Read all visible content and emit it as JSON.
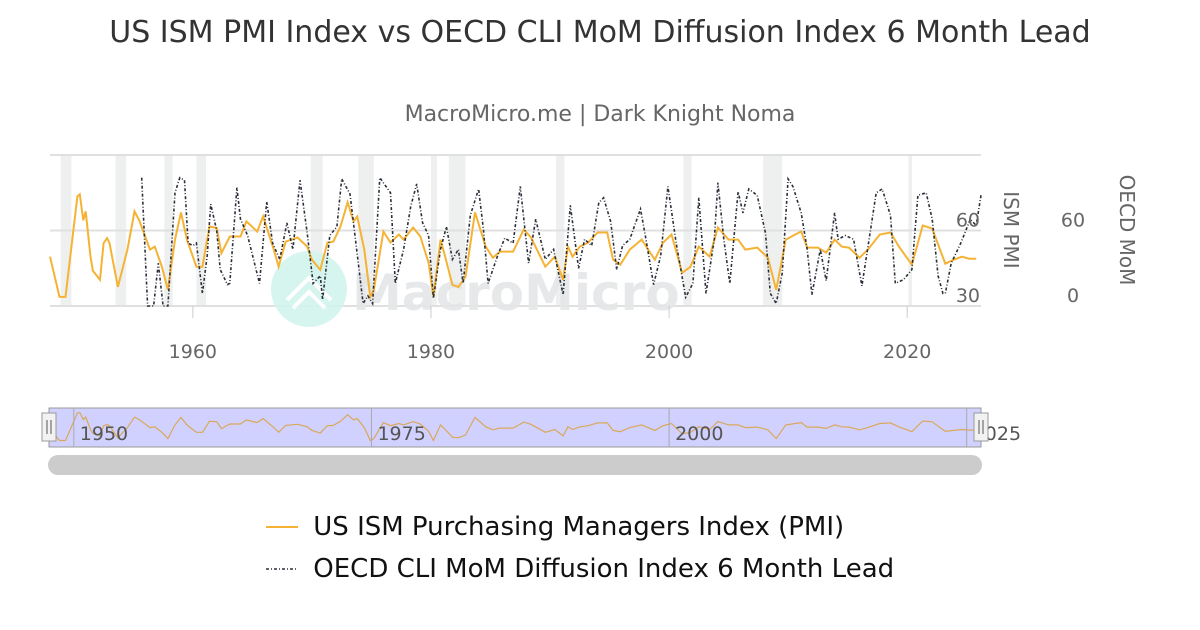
{
  "title": "US ISM PMI Index vs OECD CLI MoM Diffusion Index 6 Month Lead",
  "subtitle": "MacroMicro.me | Dark Knight Noma",
  "watermark": "MacroMicro",
  "chart_data": {
    "type": "line",
    "title": "US ISM PMI Index vs OECD CLI MoM Diffusion Index 6 Month Lead",
    "subtitle": "MacroMicro.me | Dark Knight Noma",
    "xlim": [
      1948,
      2026.2
    ],
    "x_ticks": [
      "1960",
      "1980",
      "2000",
      "2020"
    ],
    "y_axes": [
      {
        "title": "ISM PMI",
        "range": [
          30,
          90
        ],
        "ticks": [
          "30",
          "60"
        ]
      },
      {
        "title": "OECD MoM",
        "range": [
          0,
          120
        ],
        "ticks": [
          "0",
          "60"
        ]
      }
    ],
    "grid": true,
    "legend": "bottom",
    "recessions": [
      [
        1948.9,
        1949.8
      ],
      [
        1953.5,
        1954.4
      ],
      [
        1957.6,
        1958.3
      ],
      [
        1960.3,
        1961.1
      ],
      [
        1969.9,
        1970.9
      ],
      [
        1973.9,
        1975.2
      ],
      [
        1980.0,
        1980.5
      ],
      [
        1981.5,
        1982.9
      ],
      [
        1990.5,
        1991.2
      ],
      [
        2001.2,
        2001.9
      ],
      [
        2007.9,
        2009.5
      ],
      [
        2020.1,
        2020.4
      ]
    ],
    "navigator": {
      "ticks": [
        "1950",
        "1975",
        "2000",
        "2025"
      ]
    },
    "series": [
      {
        "name": "US ISM Purchasing Managers Index (PMI)",
        "color": "#f5b335",
        "axis": 0,
        "style": "solid",
        "points": [
          [
            1948,
            49.6
          ],
          [
            1948.8,
            33.6
          ],
          [
            1949.3,
            33.6
          ],
          [
            1950.3,
            73.6
          ],
          [
            1950.5,
            74.4
          ],
          [
            1950.8,
            64
          ],
          [
            1951,
            67.6
          ],
          [
            1951.4,
            49.6
          ],
          [
            1951.6,
            44
          ],
          [
            1952.2,
            40.4
          ],
          [
            1952.5,
            55
          ],
          [
            1952.8,
            57
          ],
          [
            1953,
            55
          ],
          [
            1953.7,
            37.6
          ],
          [
            1954.5,
            52.4
          ],
          [
            1955.1,
            67.6
          ],
          [
            1955.5,
            64
          ],
          [
            1956.4,
            52.4
          ],
          [
            1956.8,
            53.6
          ],
          [
            1957.4,
            45.6
          ],
          [
            1957.9,
            36.4
          ],
          [
            1958.5,
            56.4
          ],
          [
            1959,
            67.2
          ],
          [
            1959.5,
            56.4
          ],
          [
            1960.3,
            45.6
          ],
          [
            1960.8,
            45.6
          ],
          [
            1961.4,
            61.6
          ],
          [
            1962,
            61
          ],
          [
            1962.4,
            51
          ],
          [
            1963.1,
            57.6
          ],
          [
            1964,
            57.6
          ],
          [
            1964.5,
            63.6
          ],
          [
            1965.4,
            59.6
          ],
          [
            1965.9,
            65.6
          ],
          [
            1966.8,
            52.4
          ],
          [
            1967.2,
            45.6
          ],
          [
            1967.8,
            55.6
          ],
          [
            1968.8,
            57.2
          ],
          [
            1969.6,
            53.6
          ],
          [
            1970,
            48.4
          ],
          [
            1970.7,
            44.4
          ],
          [
            1971.3,
            55.2
          ],
          [
            1971.8,
            55.6
          ],
          [
            1972.4,
            61.6
          ],
          [
            1973,
            71.2
          ],
          [
            1973.5,
            63.6
          ],
          [
            1973.8,
            65.6
          ],
          [
            1974.4,
            52.4
          ],
          [
            1974.9,
            33.6
          ],
          [
            1975.2,
            36.4
          ],
          [
            1976,
            59.6
          ],
          [
            1976.6,
            55.2
          ],
          [
            1977.3,
            58.4
          ],
          [
            1977.7,
            56.4
          ],
          [
            1978.5,
            61.2
          ],
          [
            1979.1,
            57.6
          ],
          [
            1979.8,
            47.2
          ],
          [
            1980.2,
            33.6
          ],
          [
            1980.8,
            56.4
          ],
          [
            1981.1,
            51.2
          ],
          [
            1981.8,
            38.4
          ],
          [
            1982.3,
            37.6
          ],
          [
            1982.9,
            41.6
          ],
          [
            1983.7,
            67.2
          ],
          [
            1984.6,
            53.6
          ],
          [
            1985.2,
            49.2
          ],
          [
            1985.8,
            51.6
          ],
          [
            1986.9,
            51.6
          ],
          [
            1987.8,
            60.4
          ],
          [
            1988.4,
            57.2
          ],
          [
            1989.6,
            45.6
          ],
          [
            1990.4,
            49.6
          ],
          [
            1991.1,
            40.4
          ],
          [
            1991.5,
            53.6
          ],
          [
            1991.9,
            49.6
          ],
          [
            1992.5,
            53.6
          ],
          [
            1993.2,
            55.2
          ],
          [
            1994,
            59.2
          ],
          [
            1994.8,
            59.2
          ],
          [
            1995.3,
            48.4
          ],
          [
            1995.9,
            46.4
          ],
          [
            1996.7,
            52.4
          ],
          [
            1997.7,
            56.4
          ],
          [
            1998.8,
            48.4
          ],
          [
            1999.5,
            55.2
          ],
          [
            2000.2,
            58.4
          ],
          [
            2001.1,
            43.2
          ],
          [
            2001.8,
            45.6
          ],
          [
            2002.5,
            53.6
          ],
          [
            2003.4,
            49.6
          ],
          [
            2004.1,
            61.2
          ],
          [
            2005,
            56.4
          ],
          [
            2005.8,
            56.4
          ],
          [
            2006.4,
            52.4
          ],
          [
            2007.4,
            53.2
          ],
          [
            2008.3,
            49.2
          ],
          [
            2009,
            36.4
          ],
          [
            2009.8,
            56.4
          ],
          [
            2010.6,
            58.4
          ],
          [
            2011.1,
            59.6
          ],
          [
            2011.6,
            53.2
          ],
          [
            2012.5,
            53.2
          ],
          [
            2013.2,
            51.2
          ],
          [
            2013.9,
            56.4
          ],
          [
            2014.5,
            53.6
          ],
          [
            2015.1,
            53.2
          ],
          [
            2016,
            49.2
          ],
          [
            2016.7,
            52.4
          ],
          [
            2017.7,
            58.4
          ],
          [
            2018.6,
            59.2
          ],
          [
            2019.3,
            53.6
          ],
          [
            2020.4,
            46.4
          ],
          [
            2021.3,
            62
          ],
          [
            2022.1,
            60.8
          ],
          [
            2023.2,
            46.8
          ],
          [
            2023.9,
            48.4
          ],
          [
            2024.6,
            49.6
          ],
          [
            2025.2,
            48.8
          ],
          [
            2025.8,
            48.8
          ]
        ]
      },
      {
        "name": "OECD CLI MoM Diffusion Index 6 Month Lead",
        "color": "#2b2f3a",
        "axis": 1,
        "style": "dotted",
        "points": [
          [
            1955.7,
            102
          ],
          [
            1956.2,
            0
          ],
          [
            1956.7,
            0
          ],
          [
            1957.1,
            34
          ],
          [
            1957.5,
            0
          ],
          [
            1957.9,
            0
          ],
          [
            1958.5,
            90
          ],
          [
            1958.9,
            102
          ],
          [
            1959.3,
            100
          ],
          [
            1959.6,
            50
          ],
          [
            1960,
            48
          ],
          [
            1960.3,
            50
          ],
          [
            1960.8,
            10
          ],
          [
            1961.2,
            40
          ],
          [
            1961.5,
            81
          ],
          [
            1962,
            60
          ],
          [
            1962.3,
            29
          ],
          [
            1962.9,
            17
          ],
          [
            1963.1,
            18
          ],
          [
            1963.7,
            94
          ],
          [
            1964,
            69
          ],
          [
            1964.6,
            56
          ],
          [
            1965.6,
            18
          ],
          [
            1966.2,
            83
          ],
          [
            1966.7,
            50
          ],
          [
            1967.3,
            37
          ],
          [
            1967.9,
            66
          ],
          [
            1968.4,
            45
          ],
          [
            1969,
            100
          ],
          [
            1969.6,
            58
          ],
          [
            1970.1,
            18
          ],
          [
            1970.7,
            24
          ],
          [
            1970.9,
            5
          ],
          [
            1971.5,
            56
          ],
          [
            1972.1,
            63
          ],
          [
            1972.5,
            101
          ],
          [
            1973.2,
            89
          ],
          [
            1973.9,
            34
          ],
          [
            1974.3,
            2
          ],
          [
            1974.7,
            8
          ],
          [
            1975.1,
            2
          ],
          [
            1975.7,
            102
          ],
          [
            1976.6,
            90
          ],
          [
            1977,
            18
          ],
          [
            1977.7,
            45
          ],
          [
            1978.3,
            79
          ],
          [
            1978.8,
            97
          ],
          [
            1979.3,
            66
          ],
          [
            1979.8,
            56
          ],
          [
            1980.2,
            6
          ],
          [
            1980.8,
            45
          ],
          [
            1981.3,
            63
          ],
          [
            1981.8,
            37
          ],
          [
            1982.3,
            45
          ],
          [
            1982.7,
            18
          ],
          [
            1983.3,
            72
          ],
          [
            1984,
            93
          ],
          [
            1984.4,
            61
          ],
          [
            1984.8,
            18
          ],
          [
            1985.6,
            40
          ],
          [
            1986.2,
            54
          ],
          [
            1986.9,
            50
          ],
          [
            1987.5,
            95
          ],
          [
            1988.2,
            34
          ],
          [
            1988.8,
            69
          ],
          [
            1989.6,
            37
          ],
          [
            1990.3,
            45
          ],
          [
            1991.1,
            9
          ],
          [
            1991.7,
            80
          ],
          [
            1992.4,
            30
          ],
          [
            1992.9,
            53
          ],
          [
            1993.5,
            48
          ],
          [
            1994.1,
            82
          ],
          [
            1994.5,
            86
          ],
          [
            1995.1,
            67
          ],
          [
            1995.6,
            29
          ],
          [
            1996.1,
            48
          ],
          [
            1996.7,
            53
          ],
          [
            1997.6,
            77
          ],
          [
            1998,
            56
          ],
          [
            1998.7,
            17
          ],
          [
            1999.3,
            40
          ],
          [
            1999.9,
            95
          ],
          [
            2000.6,
            50
          ],
          [
            2001.4,
            7
          ],
          [
            2002,
            18
          ],
          [
            2002.5,
            86
          ],
          [
            2003.1,
            10
          ],
          [
            2003.8,
            53
          ],
          [
            2004.1,
            98
          ],
          [
            2004.6,
            53
          ],
          [
            2005.1,
            18
          ],
          [
            2005.8,
            91
          ],
          [
            2006.2,
            74
          ],
          [
            2006.7,
            93
          ],
          [
            2007.4,
            88
          ],
          [
            2008.1,
            58
          ],
          [
            2008.5,
            10
          ],
          [
            2009,
            2
          ],
          [
            2009.5,
            26
          ],
          [
            2010,
            101
          ],
          [
            2010.4,
            95
          ],
          [
            2011.1,
            74
          ],
          [
            2011.6,
            45
          ],
          [
            2012,
            9
          ],
          [
            2012.7,
            45
          ],
          [
            2013.2,
            20
          ],
          [
            2013.9,
            74
          ],
          [
            2014.2,
            53
          ],
          [
            2014.8,
            56
          ],
          [
            2015.5,
            53
          ],
          [
            2016.2,
            16
          ],
          [
            2016.8,
            53
          ],
          [
            2017.4,
            90
          ],
          [
            2017.9,
            93
          ],
          [
            2018.6,
            72
          ],
          [
            2019,
            18
          ],
          [
            2019.7,
            21
          ],
          [
            2020.4,
            29
          ],
          [
            2020.9,
            88
          ],
          [
            2021.6,
            90
          ],
          [
            2022.1,
            69
          ],
          [
            2022.6,
            24
          ],
          [
            2023,
            10
          ],
          [
            2023.2,
            10
          ],
          [
            2023.7,
            34
          ],
          [
            2024.5,
            50
          ],
          [
            2025.3,
            69
          ],
          [
            2025.8,
            64
          ],
          [
            2026.2,
            88
          ]
        ]
      }
    ]
  }
}
